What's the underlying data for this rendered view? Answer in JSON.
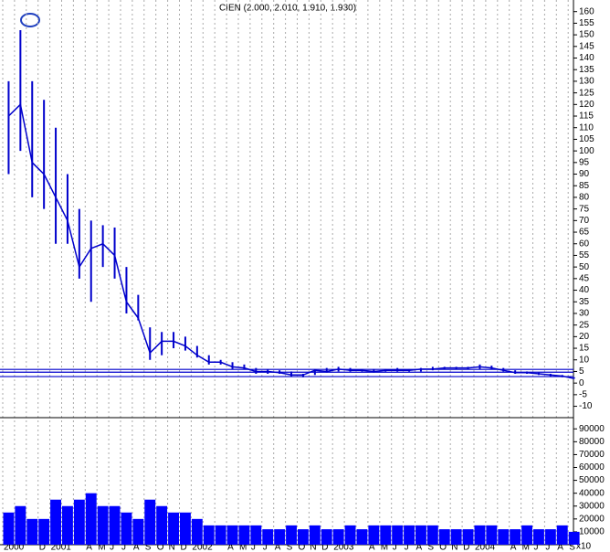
{
  "chart_data": {
    "type": "stock",
    "title": "CIEN (2.000, 2.010, 1.910, 1.930)",
    "categories": [
      "2000",
      null,
      null,
      "D",
      "2001",
      null,
      null,
      "A",
      "M",
      "J",
      "J",
      "A",
      "S",
      "O",
      "N",
      "D",
      "2002",
      null,
      null,
      "A",
      "M",
      "J",
      "J",
      "A",
      "S",
      "O",
      "N",
      "D",
      "2003",
      null,
      null,
      "A",
      "M",
      "J",
      "J",
      "A",
      "S",
      "O",
      "N",
      "D",
      "2004",
      null,
      null,
      "A",
      "M",
      "J",
      "J",
      "A",
      "S"
    ],
    "high": [
      130,
      152,
      130,
      122,
      110,
      90,
      75,
      70,
      68,
      67,
      50,
      38,
      24,
      22,
      22,
      20,
      16,
      12,
      10,
      9,
      8,
      6.5,
      6,
      5.5,
      5,
      4,
      6,
      6.5,
      7,
      6.5,
      6,
      6,
      6,
      6.5,
      6,
      6.5,
      7,
      7,
      7,
      7,
      8,
      7.5,
      6.5,
      5.5,
      5,
      4.5,
      4,
      3.5,
      2.5
    ],
    "low": [
      90,
      100,
      80,
      75,
      60,
      60,
      45,
      35,
      50,
      45,
      30,
      27,
      10,
      12,
      15,
      14,
      11,
      8,
      8,
      6,
      6,
      4,
      4,
      4,
      3,
      2.5,
      3.5,
      4.5,
      5,
      5,
      5,
      4.5,
      5,
      5,
      5,
      5,
      5.5,
      6,
      6,
      6,
      6,
      6,
      5,
      4,
      4,
      3.5,
      3,
      2.5,
      1.9
    ],
    "close": [
      115,
      120,
      95,
      90,
      80,
      70,
      50,
      58,
      60,
      55,
      35,
      28,
      13,
      18,
      18,
      16,
      12,
      9,
      9,
      7,
      6.5,
      5,
      5,
      4.5,
      3.5,
      3.5,
      5.5,
      5,
      6,
      5.5,
      5.5,
      5,
      5.5,
      5.5,
      5.5,
      6,
      6,
      6.5,
      6.5,
      6.5,
      7,
      6.5,
      5.5,
      4.5,
      4.5,
      4,
      3.5,
      3,
      2
    ],
    "color": "#0000cc",
    "hlines": [
      5.9,
      4.7,
      2.8
    ],
    "ylim": [
      -14.5,
      165
    ],
    "yticks": [
      -10,
      -5,
      0,
      5,
      10,
      15,
      20,
      25,
      30,
      35,
      40,
      45,
      50,
      55,
      60,
      65,
      70,
      75,
      80,
      85,
      90,
      95,
      100,
      105,
      110,
      115,
      120,
      125,
      130,
      135,
      140,
      145,
      150,
      155,
      160
    ],
    "grid": true,
    "volume": {
      "values": [
        25000,
        30000,
        20000,
        20000,
        35000,
        30000,
        35000,
        40000,
        30000,
        30000,
        25000,
        20000,
        35000,
        30000,
        25000,
        25000,
        20000,
        15000,
        15000,
        15000,
        15000,
        15000,
        12000,
        12000,
        15000,
        12000,
        15000,
        12000,
        12000,
        15000,
        12000,
        15000,
        15000,
        15000,
        15000,
        15000,
        15000,
        12000,
        12000,
        12000,
        15000,
        15000,
        12000,
        12000,
        15000,
        12000,
        12000,
        15000,
        10000
      ],
      "color": "#0000ff",
      "ylim": [
        0,
        98000
      ],
      "yticks": [
        10000,
        20000,
        30000,
        40000,
        50000,
        60000,
        70000,
        80000,
        90000
      ],
      "unit_label": "x10"
    }
  }
}
